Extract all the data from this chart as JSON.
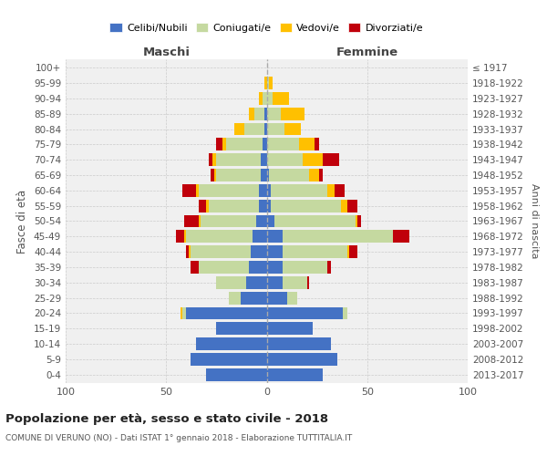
{
  "age_groups": [
    "0-4",
    "5-9",
    "10-14",
    "15-19",
    "20-24",
    "25-29",
    "30-34",
    "35-39",
    "40-44",
    "45-49",
    "50-54",
    "55-59",
    "60-64",
    "65-69",
    "70-74",
    "75-79",
    "80-84",
    "85-89",
    "90-94",
    "95-99",
    "100+"
  ],
  "birth_years": [
    "2013-2017",
    "2008-2012",
    "2003-2007",
    "1998-2002",
    "1993-1997",
    "1988-1992",
    "1983-1987",
    "1978-1982",
    "1973-1977",
    "1968-1972",
    "1963-1967",
    "1958-1962",
    "1953-1957",
    "1948-1952",
    "1943-1947",
    "1938-1942",
    "1933-1937",
    "1928-1932",
    "1923-1927",
    "1918-1922",
    "≤ 1917"
  ],
  "colors": {
    "celibi": "#4472c4",
    "coniugati": "#c5d9a0",
    "vedovi": "#ffc000",
    "divorziati": "#c0000b"
  },
  "maschi": {
    "celibi": [
      30,
      38,
      35,
      25,
      40,
      13,
      10,
      9,
      8,
      7,
      5,
      4,
      4,
      3,
      3,
      2,
      1,
      1,
      0,
      0,
      0
    ],
    "coniugati": [
      0,
      0,
      0,
      0,
      2,
      6,
      15,
      25,
      30,
      33,
      28,
      25,
      30,
      22,
      22,
      18,
      10,
      5,
      2,
      0,
      0
    ],
    "vedovi": [
      0,
      0,
      0,
      0,
      1,
      0,
      0,
      0,
      1,
      1,
      1,
      1,
      1,
      1,
      2,
      2,
      5,
      3,
      2,
      1,
      0
    ],
    "divorziati": [
      0,
      0,
      0,
      0,
      0,
      0,
      0,
      4,
      1,
      4,
      7,
      4,
      7,
      2,
      2,
      3,
      0,
      0,
      0,
      0,
      0
    ]
  },
  "femmine": {
    "celibi": [
      28,
      35,
      32,
      23,
      38,
      10,
      8,
      8,
      8,
      8,
      4,
      2,
      2,
      1,
      0,
      0,
      0,
      0,
      0,
      0,
      0
    ],
    "coniugati": [
      0,
      0,
      0,
      0,
      2,
      5,
      12,
      22,
      32,
      55,
      40,
      35,
      28,
      20,
      18,
      16,
      9,
      7,
      3,
      1,
      0
    ],
    "vedovi": [
      0,
      0,
      0,
      0,
      0,
      0,
      0,
      0,
      1,
      0,
      1,
      3,
      4,
      5,
      10,
      8,
      8,
      12,
      8,
      2,
      0
    ],
    "divorziati": [
      0,
      0,
      0,
      0,
      0,
      0,
      1,
      2,
      4,
      8,
      2,
      5,
      5,
      2,
      8,
      2,
      0,
      0,
      0,
      0,
      0
    ]
  },
  "xlim": 100,
  "title": "Popolazione per età, sesso e stato civile - 2018",
  "subtitle": "COMUNE DI VERUNO (NO) - Dati ISTAT 1° gennaio 2018 - Elaborazione TUTTITALIA.IT",
  "xlabel_left": "Maschi",
  "xlabel_right": "Femmine",
  "ylabel": "Fasce di età",
  "ylabel_right": "Anni di nascita",
  "legend_labels": [
    "Celibi/Nubili",
    "Coniugati/e",
    "Vedovi/e",
    "Divorziati/e"
  ],
  "background_color": "#f0f0f0",
  "grid_color": "#cccccc"
}
